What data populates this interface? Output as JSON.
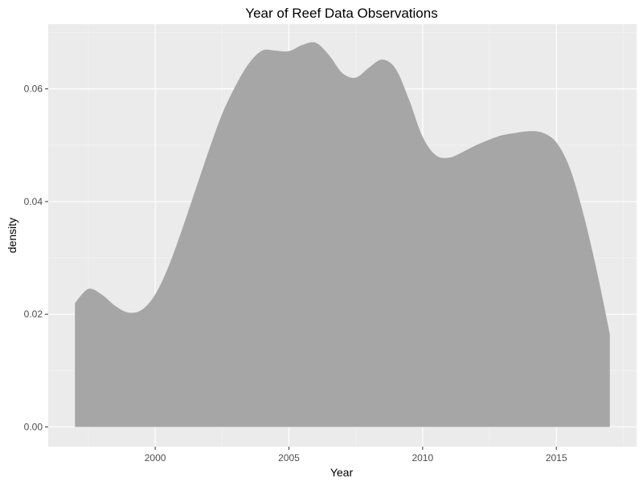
{
  "chart_data": {
    "type": "area",
    "title": "Year of Reef Data Observations",
    "xlabel": "Year",
    "ylabel": "density",
    "xlim": [
      1996.0,
      2018.0
    ],
    "ylim": [
      -0.0035,
      0.0715
    ],
    "x_ticks": [
      2000,
      2005,
      2010,
      2015
    ],
    "y_ticks": [
      0.0,
      0.02,
      0.04,
      0.06
    ],
    "x_tick_labels": [
      "2000",
      "2005",
      "2010",
      "2015"
    ],
    "y_tick_labels": [
      "0.00",
      "0.02",
      "0.04",
      "0.06"
    ],
    "grid": true,
    "legend": "none",
    "series": [
      {
        "x": [
          1997.0,
          1997.5,
          1998.0,
          1998.5,
          1999.0,
          1999.5,
          2000.0,
          2000.5,
          2001.0,
          2001.5,
          2002.0,
          2002.5,
          2003.0,
          2003.5,
          2004.0,
          2004.5,
          2005.0,
          2005.5,
          2006.0,
          2006.5,
          2007.0,
          2007.5,
          2008.0,
          2008.5,
          2009.0,
          2009.5,
          2010.0,
          2010.5,
          2011.0,
          2011.5,
          2012.0,
          2012.5,
          2013.0,
          2013.5,
          2014.0,
          2014.5,
          2015.0,
          2015.5,
          2016.0,
          2016.5,
          2017.0
        ],
        "y": [
          0.022,
          0.0245,
          0.0235,
          0.0215,
          0.0203,
          0.0208,
          0.0235,
          0.0285,
          0.035,
          0.042,
          0.049,
          0.0555,
          0.0605,
          0.0645,
          0.0668,
          0.0668,
          0.0667,
          0.0678,
          0.0682,
          0.066,
          0.0628,
          0.062,
          0.0638,
          0.0652,
          0.0635,
          0.058,
          0.0515,
          0.0482,
          0.0478,
          0.0488,
          0.05,
          0.051,
          0.0518,
          0.0522,
          0.0525,
          0.0522,
          0.0505,
          0.046,
          0.038,
          0.028,
          0.0165
        ]
      }
    ],
    "colors": {
      "panel_background": "#ebebeb",
      "grid_major": "#ffffff",
      "grid_minor": "#f2f2f2",
      "area_fill": "#a6a6a6"
    }
  }
}
